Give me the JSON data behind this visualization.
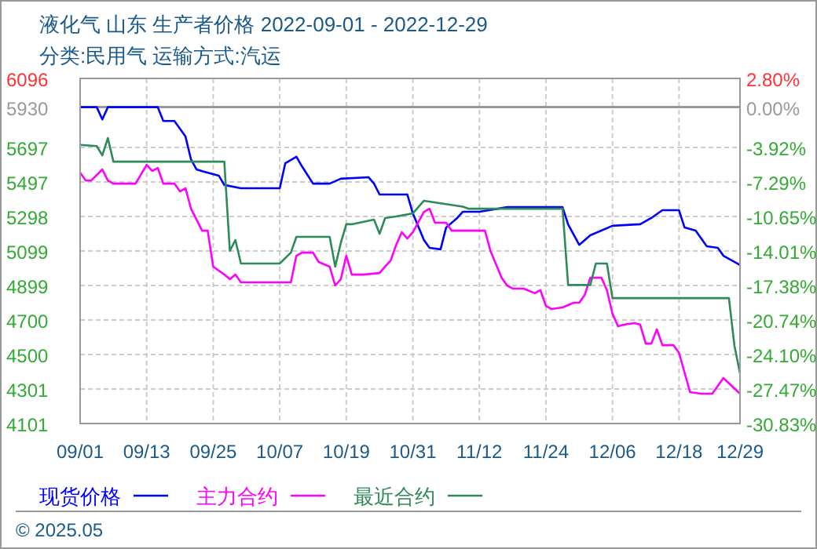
{
  "chart_data": {
    "type": "line",
    "title": "液化气 山东 生产者价格 2022-09-01 - 2022-12-29",
    "subtitle": "分类:民用气 运输方式:汽运",
    "annotations": [
      "© 2025.05"
    ],
    "xlim": [
      "2022-09-01",
      "2022-12-29"
    ],
    "xticks": [
      {
        "value": "2022-09-01",
        "label": "09/01"
      },
      {
        "value": "2022-09-13",
        "label": "09/13"
      },
      {
        "value": "2022-09-25",
        "label": "09/25"
      },
      {
        "value": "2022-10-07",
        "label": "10/07"
      },
      {
        "value": "2022-10-19",
        "label": "10/19"
      },
      {
        "value": "2022-10-31",
        "label": "10/31"
      },
      {
        "value": "2022-11-12",
        "label": "11/12"
      },
      {
        "value": "2022-11-24",
        "label": "11/24"
      },
      {
        "value": "2022-12-06",
        "label": "12/06"
      },
      {
        "value": "2022-12-18",
        "label": "12/18"
      },
      {
        "value": "2022-12-29",
        "label": "12/29"
      }
    ],
    "ylim": [
      4101,
      6096
    ],
    "yticks": [
      4101,
      4301,
      4500,
      4700,
      4899,
      5099,
      5298,
      5497,
      5697,
      5930,
      6096
    ],
    "y2lim": [
      -30.83,
      2.8
    ],
    "y2ticks": [
      {
        "value": -30.83,
        "label": "-30.83%"
      },
      {
        "value": -27.47,
        "label": "-27.47%"
      },
      {
        "value": -24.1,
        "label": "-24.10%"
      },
      {
        "value": -20.74,
        "label": "-20.74%"
      },
      {
        "value": -17.38,
        "label": "-17.38%"
      },
      {
        "value": -14.01,
        "label": "-14.01%"
      },
      {
        "value": -10.65,
        "label": "-10.65%"
      },
      {
        "value": -7.29,
        "label": "-7.29%"
      },
      {
        "value": -3.92,
        "label": "-3.92%"
      },
      {
        "value": 0,
        "label": "0.00%"
      },
      {
        "value": 2.8,
        "label": "2.80%"
      }
    ],
    "ref_lines": [
      {
        "axis": "y",
        "value": 5930,
        "color": "#999999"
      }
    ],
    "grid": true,
    "legend": "bottom",
    "series": [
      {
        "name": "现货价格",
        "color": "#0000ff",
        "x": [
          "2022-09-01",
          "2022-09-04",
          "2022-09-05",
          "2022-09-06",
          "2022-09-15",
          "2022-09-16",
          "2022-09-18",
          "2022-09-20",
          "2022-09-21",
          "2022-09-22",
          "2022-09-23",
          "2022-09-26",
          "2022-09-27",
          "2022-09-30",
          "2022-10-07",
          "2022-10-08",
          "2022-10-10",
          "2022-10-11",
          "2022-10-13",
          "2022-10-16",
          "2022-10-18",
          "2022-10-23",
          "2022-10-24",
          "2022-10-25",
          "2022-10-30",
          "2022-10-31",
          "2022-11-02",
          "2022-11-03",
          "2022-11-05",
          "2022-11-06",
          "2022-11-08",
          "2022-11-09",
          "2022-11-12",
          "2022-11-17",
          "2022-11-27",
          "2022-11-28",
          "2022-11-30",
          "2022-12-02",
          "2022-12-06",
          "2022-12-11",
          "2022-12-13",
          "2022-12-15",
          "2022-12-18",
          "2022-12-19",
          "2022-12-21",
          "2022-12-23",
          "2022-12-25",
          "2022-12-26",
          "2022-12-29"
        ],
        "values": [
          5930,
          5930,
          5859,
          5930,
          5930,
          5850,
          5850,
          5760,
          5627,
          5570,
          5560,
          5534,
          5480,
          5461,
          5461,
          5606,
          5643,
          5588,
          5488,
          5488,
          5516,
          5525,
          5488,
          5425,
          5425,
          5316,
          5162,
          5117,
          5108,
          5234,
          5289,
          5325,
          5325,
          5352,
          5352,
          5252,
          5134,
          5189,
          5244,
          5253,
          5289,
          5334,
          5334,
          5234,
          5216,
          5126,
          5117,
          5071,
          5017
        ]
      },
      {
        "name": "主力合约",
        "color": "#ff00ff",
        "x": [
          "2022-09-01",
          "2022-09-02",
          "2022-09-03",
          "2022-09-05",
          "2022-09-06",
          "2022-09-07",
          "2022-09-11",
          "2022-09-13",
          "2022-09-14",
          "2022-09-15",
          "2022-09-16",
          "2022-09-18",
          "2022-09-19",
          "2022-09-20",
          "2022-09-21",
          "2022-09-23",
          "2022-09-24",
          "2022-09-25",
          "2022-09-27",
          "2022-09-28",
          "2022-09-29",
          "2022-09-30",
          "2022-10-09",
          "2022-10-10",
          "2022-10-11",
          "2022-10-13",
          "2022-10-14",
          "2022-10-16",
          "2022-10-17",
          "2022-10-18",
          "2022-10-19",
          "2022-10-20",
          "2022-10-22",
          "2022-10-25",
          "2022-10-26",
          "2022-10-27",
          "2022-10-28",
          "2022-10-29",
          "2022-10-30",
          "2022-10-31",
          "2022-11-02",
          "2022-11-03",
          "2022-11-04",
          "2022-11-06",
          "2022-11-07",
          "2022-11-13",
          "2022-11-14",
          "2022-11-16",
          "2022-11-17",
          "2022-11-18",
          "2022-11-20",
          "2022-11-22",
          "2022-11-23",
          "2022-11-24",
          "2022-11-25",
          "2022-11-27",
          "2022-11-29",
          "2022-11-30",
          "2022-12-01",
          "2022-12-02",
          "2022-12-04",
          "2022-12-05",
          "2022-12-06",
          "2022-12-07",
          "2022-12-08",
          "2022-12-10",
          "2022-12-11",
          "2022-12-12",
          "2022-12-13",
          "2022-12-14",
          "2022-12-15",
          "2022-12-17",
          "2022-12-18",
          "2022-12-20",
          "2022-12-22",
          "2022-12-24",
          "2022-12-26",
          "2022-12-29"
        ],
        "values": [
          5552,
          5506,
          5506,
          5570,
          5506,
          5488,
          5488,
          5597,
          5561,
          5579,
          5488,
          5488,
          5443,
          5461,
          5343,
          5216,
          5216,
          5008,
          4962,
          4935,
          4962,
          4917,
          4917,
          5071,
          5089,
          5089,
          5035,
          5008,
          4899,
          4935,
          5071,
          4962,
          4962,
          4971,
          5008,
          5044,
          5134,
          5207,
          5171,
          5207,
          5325,
          5343,
          5262,
          5262,
          5216,
          5216,
          5099,
          4944,
          4899,
          4881,
          4881,
          4854,
          4872,
          4781,
          4763,
          4772,
          4799,
          4799,
          4845,
          4944,
          4944,
          4872,
          4736,
          4663,
          4672,
          4681,
          4672,
          4563,
          4563,
          4645,
          4554,
          4554,
          4509,
          4282,
          4273,
          4273,
          4364,
          4273
        ]
      },
      {
        "name": "最近合约",
        "color": "#2e8b57",
        "x": [
          "2022-09-01",
          "2022-09-04",
          "2022-09-05",
          "2022-09-06",
          "2022-09-07",
          "2022-09-27",
          "2022-09-28",
          "2022-09-29",
          "2022-09-30",
          "2022-10-07",
          "2022-10-09",
          "2022-10-10",
          "2022-10-16",
          "2022-10-17",
          "2022-10-18",
          "2022-10-19",
          "2022-10-20",
          "2022-10-24",
          "2022-10-25",
          "2022-10-26",
          "2022-10-28",
          "2022-10-31",
          "2022-11-02",
          "2022-11-09",
          "2022-11-10",
          "2022-11-27",
          "2022-11-28",
          "2022-12-02",
          "2022-12-03",
          "2022-12-05",
          "2022-12-06",
          "2022-12-27",
          "2022-12-28",
          "2022-12-29"
        ],
        "values": [
          5712,
          5705,
          5651,
          5751,
          5615,
          5615,
          5099,
          5162,
          5026,
          5026,
          5089,
          5180,
          5180,
          5008,
          5144,
          5253,
          5253,
          5280,
          5198,
          5289,
          5298,
          5316,
          5389,
          5355,
          5343,
          5343,
          4902,
          4902,
          5026,
          5026,
          4826,
          4826,
          4550,
          4391
        ]
      }
    ]
  }
}
